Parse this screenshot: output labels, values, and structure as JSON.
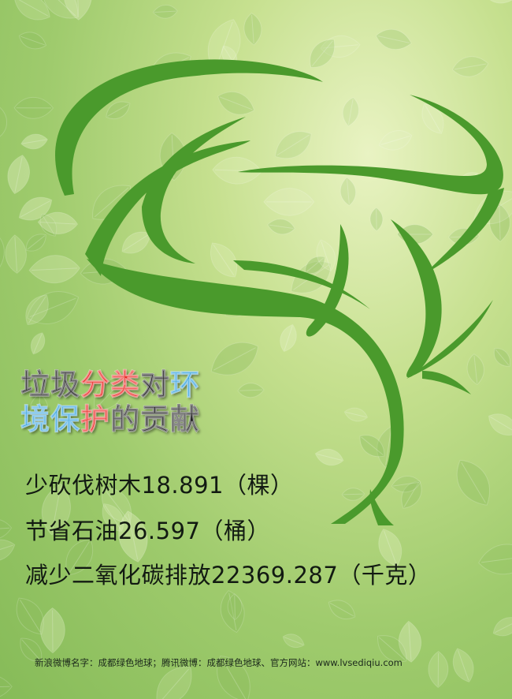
{
  "headline": {
    "line1": [
      {
        "text": "垃圾",
        "color": "#111111"
      },
      {
        "text": "分类",
        "color": "#e8231d"
      },
      {
        "text": "对",
        "color": "#111111"
      },
      {
        "text": "环",
        "color": "#2c9ddb"
      }
    ],
    "line2": [
      {
        "text": "境保",
        "color": "#2c9ddb"
      },
      {
        "text": "护",
        "color": "#e8231d"
      },
      {
        "text": "的贡献",
        "color": "#111111"
      }
    ]
  },
  "stats": [
    "少砍伐树木18.891（棵）",
    "节省石油26.597（桶）",
    "减少二氧化碳排放22369.287（千克）"
  ],
  "footer": "新浪微博名字：成都绿色地球；腾讯微博：成都绿色地球、官方网站：www.lvsediqiu.com",
  "colors": {
    "tree": "#4a9a2c",
    "background": "#b3d57c",
    "leaf_light": "#e3f0c0",
    "leaf_dark": "#8dbd5f"
  }
}
